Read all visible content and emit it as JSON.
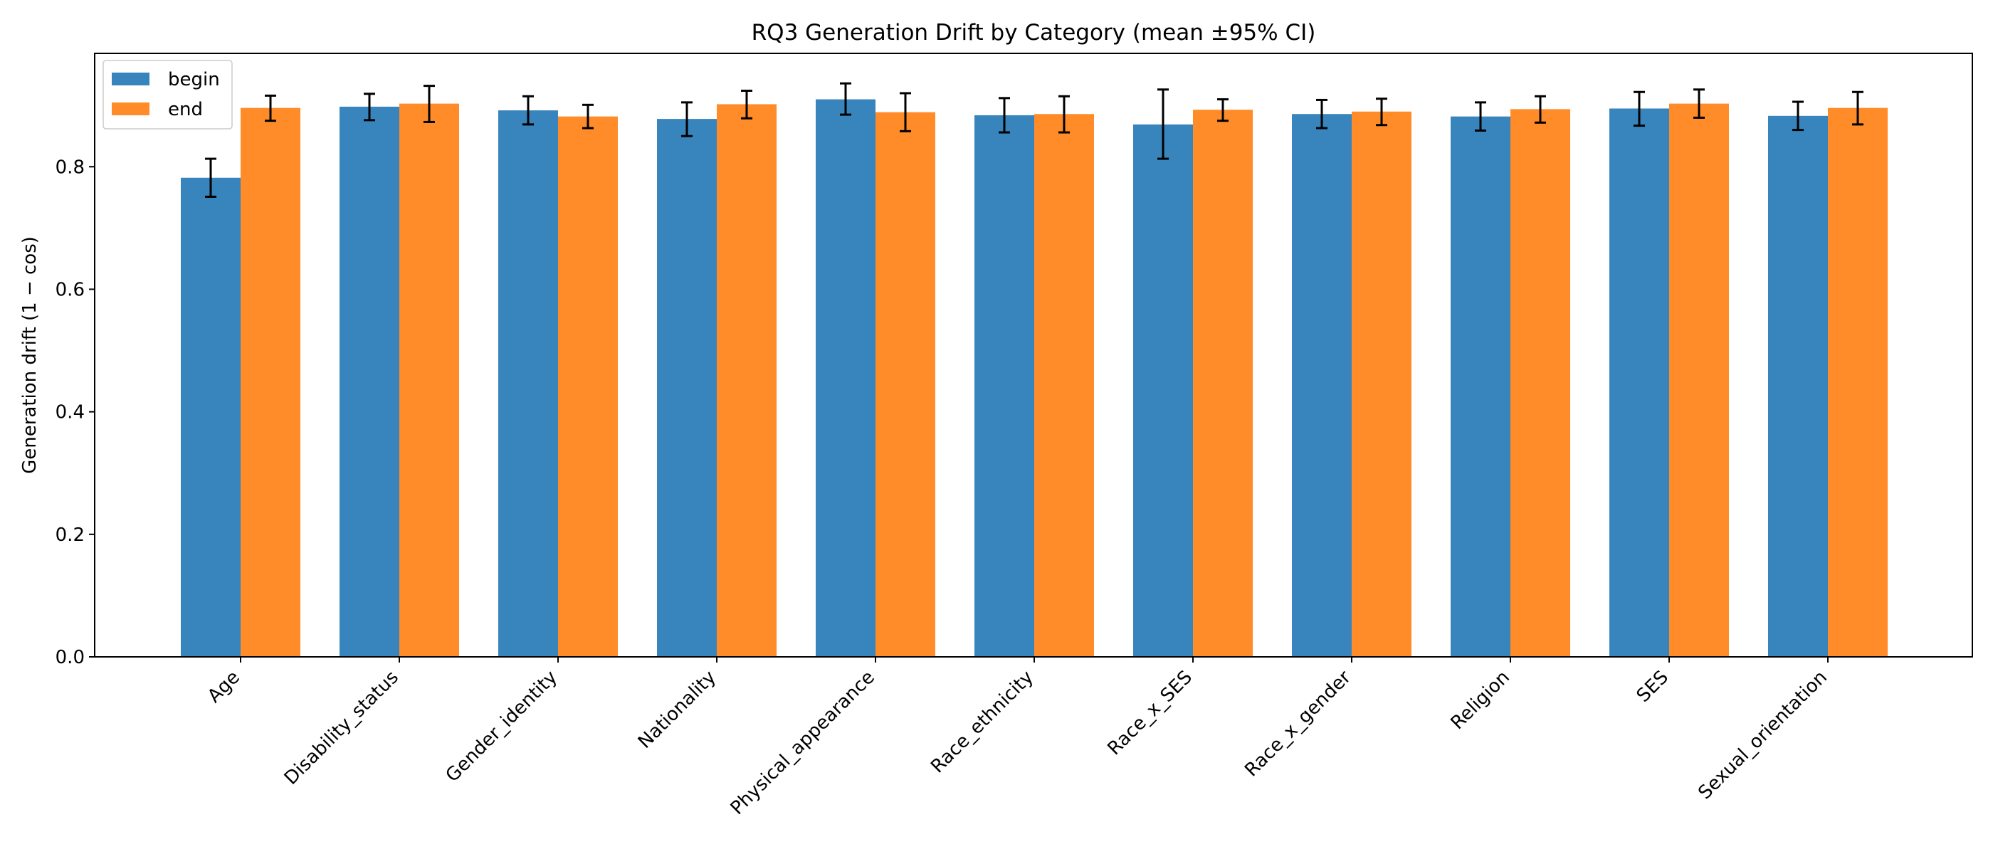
{
  "chart_data": {
    "type": "bar",
    "title": "RQ3 Generation Drift by Category (mean ±95% CI)",
    "xlabel": "",
    "ylabel": "Generation drift (1 − cos)",
    "ylim": [
      0,
      0.985
    ],
    "yticks": [
      0.0,
      0.2,
      0.4,
      0.6,
      0.8
    ],
    "ytick_labels": [
      "0.0",
      "0.2",
      "0.4",
      "0.6",
      "0.8"
    ],
    "grid": false,
    "legend_position": "top-left",
    "categories": [
      "Age",
      "Disability_status",
      "Gender_identity",
      "Nationality",
      "Physical_appearance",
      "Race_ethnicity",
      "Race_x_SES",
      "Race_x_gender",
      "Religion",
      "SES",
      "Sexual_orientation"
    ],
    "series": [
      {
        "name": "begin",
        "color": "#3785bc",
        "values": [
          0.782,
          0.898,
          0.892,
          0.878,
          0.91,
          0.884,
          0.869,
          0.886,
          0.882,
          0.895,
          0.883
        ],
        "ci_low": [
          0.751,
          0.876,
          0.869,
          0.85,
          0.885,
          0.856,
          0.813,
          0.863,
          0.859,
          0.867,
          0.86
        ],
        "ci_high": [
          0.813,
          0.919,
          0.915,
          0.905,
          0.936,
          0.912,
          0.926,
          0.909,
          0.905,
          0.922,
          0.906
        ]
      },
      {
        "name": "end",
        "color": "#ff8c29",
        "values": [
          0.896,
          0.903,
          0.882,
          0.902,
          0.889,
          0.886,
          0.893,
          0.89,
          0.894,
          0.903,
          0.896
        ],
        "ci_low": [
          0.875,
          0.873,
          0.863,
          0.879,
          0.858,
          0.856,
          0.875,
          0.868,
          0.872,
          0.88,
          0.869
        ],
        "ci_high": [
          0.916,
          0.932,
          0.901,
          0.924,
          0.92,
          0.915,
          0.91,
          0.911,
          0.915,
          0.926,
          0.922
        ]
      }
    ]
  }
}
